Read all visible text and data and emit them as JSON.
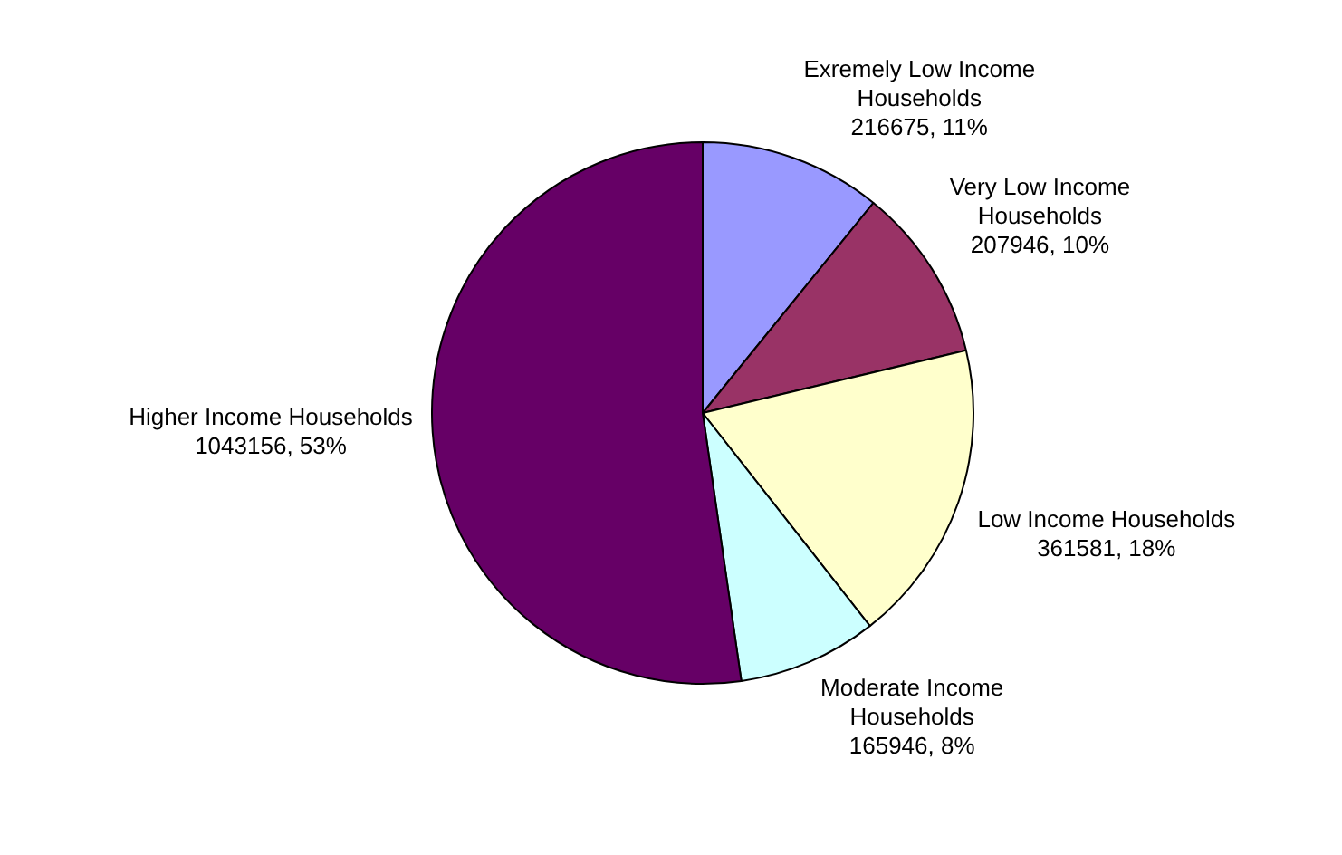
{
  "chart_data": {
    "type": "pie",
    "categories": [
      "Exremely Low Income Households",
      "Very Low Income Households",
      "Low Income Households",
      "Moderate Income Households",
      "Higher Income Households"
    ],
    "values": [
      216675,
      207946,
      361581,
      165946,
      1043156
    ],
    "value_labels": [
      "216675, 11%",
      "207946, 10%",
      "361581, 18%",
      "165946, 8%",
      "1043156, 53%"
    ],
    "colors": [
      "#9999ff",
      "#993366",
      "#ffffcc",
      "#ccffff",
      "#660066"
    ],
    "legend": false
  }
}
